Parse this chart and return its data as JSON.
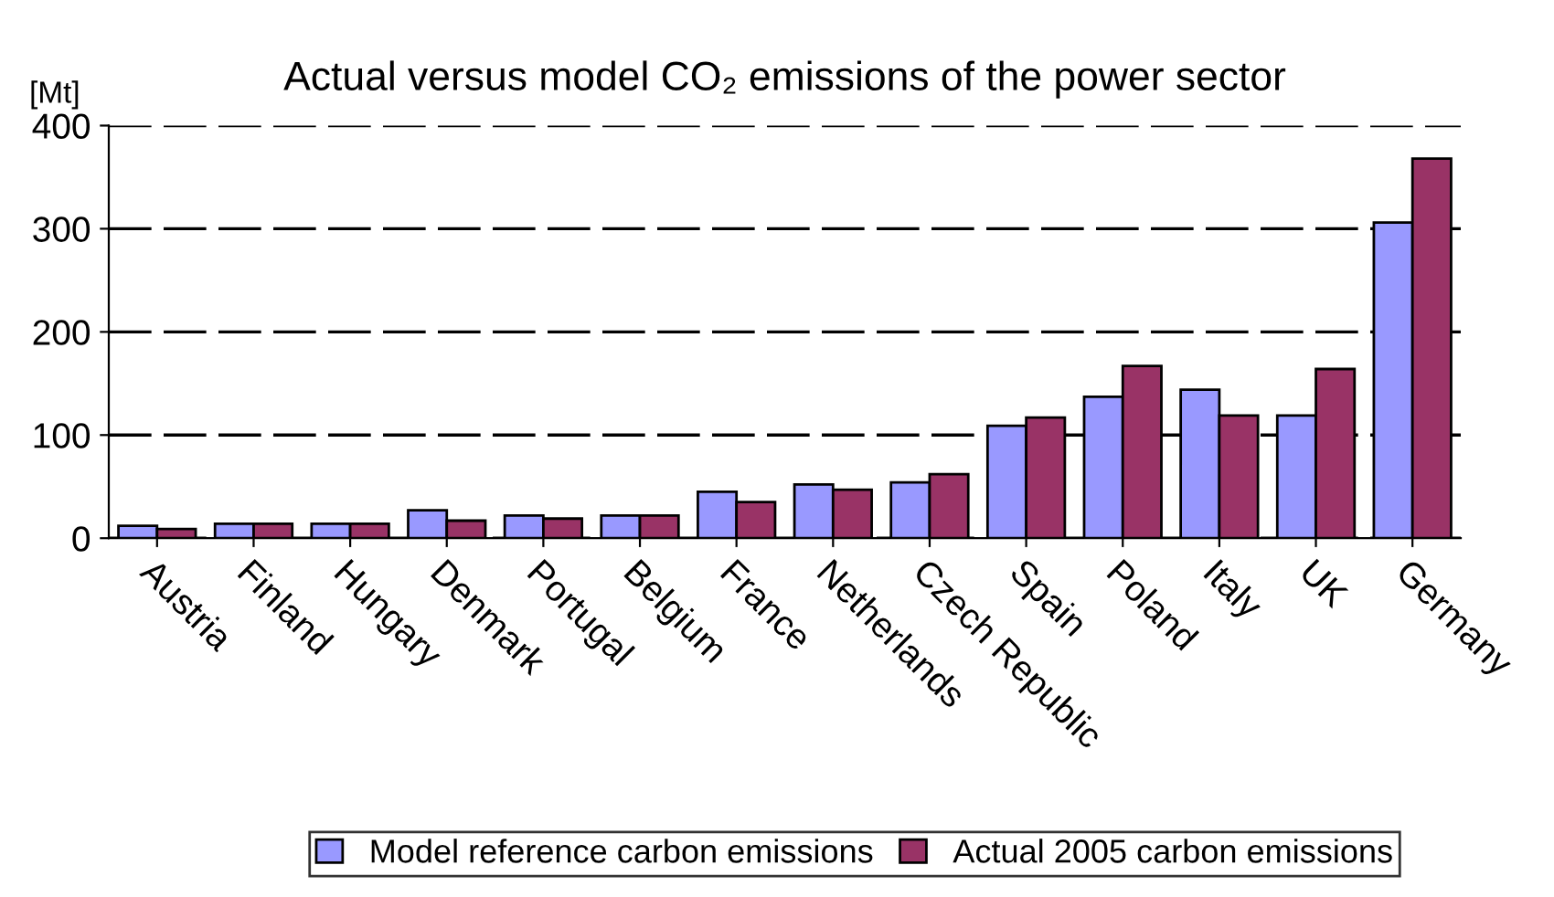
{
  "chart_data": {
    "type": "bar",
    "title": "Actual versus model CO₂ emissions of the power sector",
    "ylabel": "[Mt]",
    "categories": [
      "Austria",
      "Finland",
      "Hungary",
      "Denmark",
      "Portugal",
      "Belgium",
      "France",
      "Netherlands",
      "Czech Republic",
      "Spain",
      "Poland",
      "Italy",
      "UK",
      "Germany"
    ],
    "series": [
      {
        "name": "Model reference carbon emissions",
        "color": "#9999ff",
        "values": [
          12,
          14,
          14,
          27,
          22,
          22,
          45,
          52,
          54,
          109,
          137,
          144,
          119,
          306
        ]
      },
      {
        "name": "Actual 2005 carbon emissions",
        "color": "#993366",
        "values": [
          9,
          14,
          14,
          17,
          19,
          22,
          35,
          47,
          62,
          117,
          167,
          119,
          164,
          368
        ]
      }
    ],
    "ylim": [
      0,
      400
    ],
    "yticks": [
      0,
      100,
      200,
      300,
      400
    ],
    "grid": "y",
    "legend": "bottom"
  }
}
